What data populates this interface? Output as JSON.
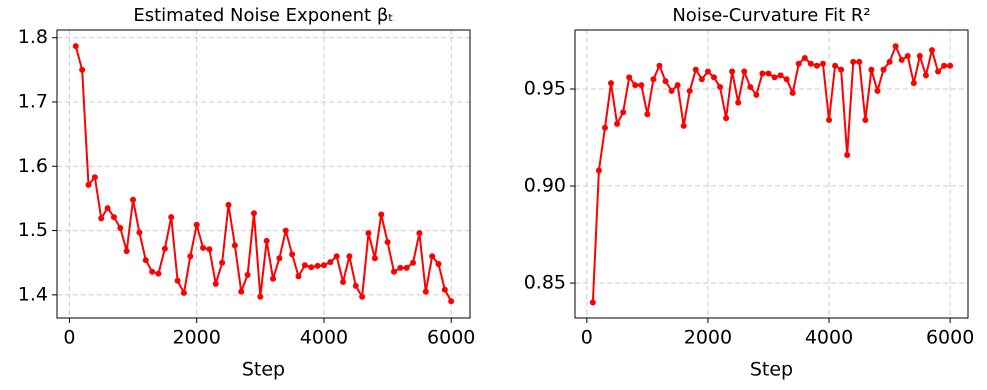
{
  "chart_data": [
    {
      "type": "line",
      "title": "Estimated Noise Exponent βₜ",
      "xlabel": "Step",
      "x": [
        100,
        200,
        300,
        400,
        500,
        600,
        700,
        800,
        900,
        1000,
        1100,
        1200,
        1300,
        1400,
        1500,
        1600,
        1700,
        1800,
        1900,
        2000,
        2100,
        2200,
        2300,
        2400,
        2500,
        2600,
        2700,
        2800,
        2900,
        3000,
        3100,
        3200,
        3300,
        3400,
        3500,
        3600,
        3700,
        3800,
        3900,
        4000,
        4100,
        4200,
        4300,
        4400,
        4500,
        4600,
        4700,
        4800,
        4900,
        5000,
        5100,
        5200,
        5300,
        5400,
        5500,
        5600,
        5700,
        5800,
        5900,
        6000
      ],
      "series": [
        {
          "color": "#ff0000",
          "values": [
            1.787,
            1.75,
            1.571,
            1.583,
            1.519,
            1.535,
            1.521,
            1.504,
            1.468,
            1.548,
            1.497,
            1.454,
            1.436,
            1.433,
            1.472,
            1.521,
            1.422,
            1.403,
            1.46,
            1.509,
            1.473,
            1.471,
            1.417,
            1.45,
            1.54,
            1.477,
            1.405,
            1.431,
            1.527,
            1.397,
            1.484,
            1.425,
            1.457,
            1.5,
            1.463,
            1.429,
            1.446,
            1.443,
            1.445,
            1.446,
            1.451,
            1.46,
            1.42,
            1.46,
            1.414,
            1.397,
            1.496,
            1.457,
            1.525,
            1.482,
            1.436,
            1.442,
            1.442,
            1.45,
            1.496,
            1.405,
            1.46,
            1.448,
            1.408,
            1.39
          ]
        }
      ],
      "xlim": [
        -195,
        6295
      ],
      "xticks": [
        0,
        2000,
        4000,
        6000
      ],
      "ylim": [
        1.364,
        1.812
      ],
      "yticks": [
        1.4,
        1.5,
        1.6,
        1.7,
        1.8
      ],
      "grid": true
    },
    {
      "type": "line",
      "title": "Noise-Curvature Fit R²",
      "xlabel": "Step",
      "x": [
        100,
        200,
        300,
        400,
        500,
        600,
        700,
        800,
        900,
        1000,
        1100,
        1200,
        1300,
        1400,
        1500,
        1600,
        1700,
        1800,
        1900,
        2000,
        2100,
        2200,
        2300,
        2400,
        2500,
        2600,
        2700,
        2800,
        2900,
        3000,
        3100,
        3200,
        3300,
        3400,
        3500,
        3600,
        3700,
        3800,
        3900,
        4000,
        4100,
        4200,
        4300,
        4400,
        4500,
        4600,
        4700,
        4800,
        4900,
        5000,
        5100,
        5200,
        5300,
        5400,
        5500,
        5600,
        5700,
        5800,
        5900,
        6000
      ],
      "series": [
        {
          "color": "#ff0000",
          "values": [
            0.84,
            0.908,
            0.93,
            0.953,
            0.932,
            0.938,
            0.956,
            0.952,
            0.952,
            0.937,
            0.955,
            0.962,
            0.954,
            0.949,
            0.952,
            0.931,
            0.949,
            0.96,
            0.955,
            0.959,
            0.956,
            0.951,
            0.935,
            0.959,
            0.943,
            0.959,
            0.951,
            0.947,
            0.958,
            0.958,
            0.956,
            0.957,
            0.955,
            0.948,
            0.963,
            0.966,
            0.963,
            0.962,
            0.963,
            0.934,
            0.962,
            0.96,
            0.916,
            0.964,
            0.964,
            0.934,
            0.96,
            0.949,
            0.96,
            0.964,
            0.972,
            0.965,
            0.967,
            0.953,
            0.967,
            0.957,
            0.97,
            0.959,
            0.962,
            0.962
          ]
        }
      ],
      "xlim": [
        -195,
        6295
      ],
      "xticks": [
        0,
        2000,
        4000,
        6000
      ],
      "ylim": [
        0.832,
        0.9804
      ],
      "yticks": [
        0.85,
        {
          "value": 0.9,
          "label": "0.90"
        },
        0.95
      ],
      "grid": true
    }
  ]
}
